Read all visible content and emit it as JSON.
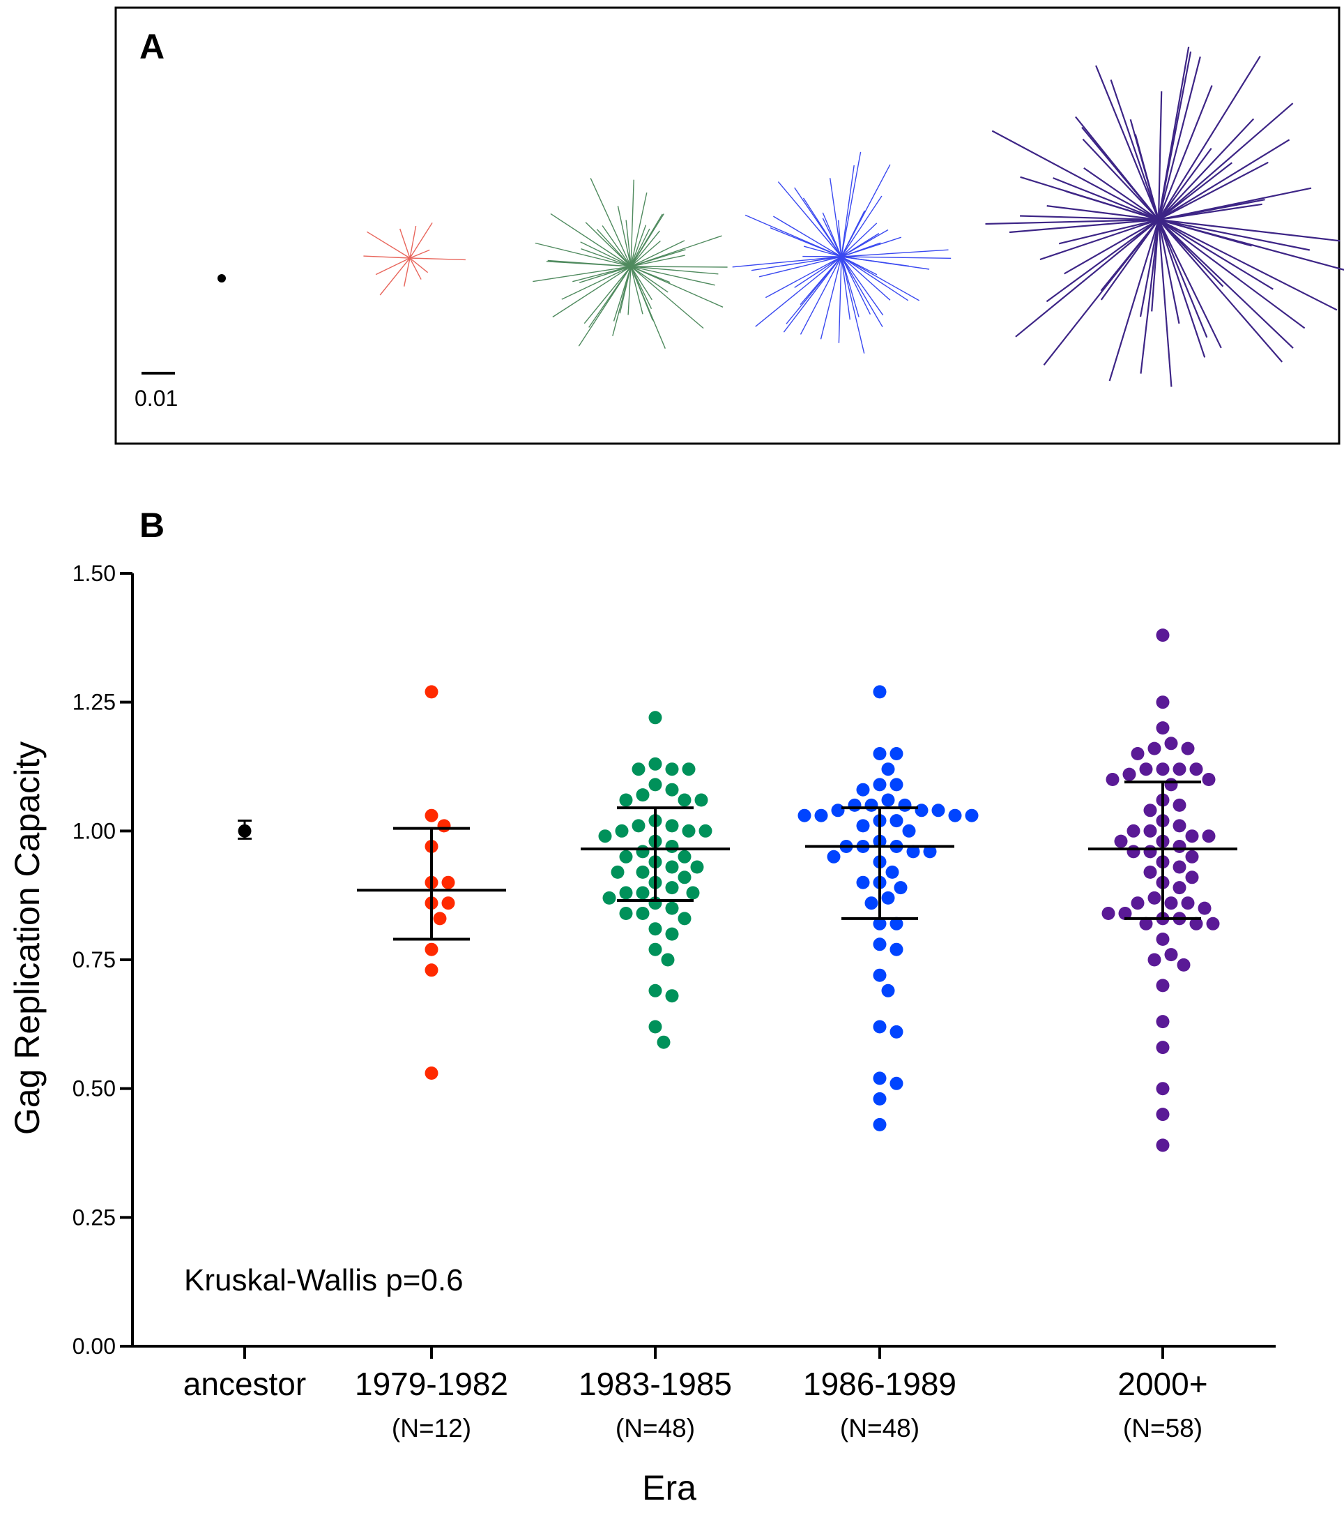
{
  "panel_a": {
    "letter": "A",
    "scale_label": "0.01",
    "tree_colors": [
      "#000000",
      "#e8665c",
      "#4f8a5e",
      "#3a49f0",
      "#3d2586"
    ]
  },
  "panel_b": {
    "letter": "B"
  },
  "chart_data": [
    {
      "type": "tree",
      "panel": "A",
      "description_labels": [
        "0.01"
      ],
      "trees": [
        {
          "era": "ancestor",
          "color": "#000000",
          "branches": 1
        },
        {
          "era": "1979-1982",
          "color": "#e8665c",
          "branches": 12
        },
        {
          "era": "1983-1985",
          "color": "#4f8a5e",
          "branches": 48
        },
        {
          "era": "1986-1989",
          "color": "#3a49f0",
          "branches": 48
        },
        {
          "era": "2000+",
          "color": "#3d2586",
          "branches": 58
        }
      ]
    },
    {
      "type": "scatter",
      "panel": "B",
      "xlabel": "Era",
      "ylabel": "Gag Replication Capacity",
      "ylim": [
        0,
        1.5
      ],
      "yticks": [
        "0.00",
        "0.25",
        "0.50",
        "0.75",
        "1.00",
        "1.25",
        "1.50"
      ],
      "annotation": "Kruskal-Wallis p=0.6",
      "categories": [
        {
          "label": "ancestor",
          "n_label": "",
          "color": "#000000",
          "values": [
            1.0
          ],
          "mean": 1.0,
          "err_low": 0.985,
          "err_high": 1.02,
          "style": "point"
        },
        {
          "label": "1979-1982",
          "n_label": "(N=12)",
          "color": "#ff2a00",
          "values": [
            1.27,
            1.03,
            1.01,
            0.97,
            0.9,
            0.9,
            0.86,
            0.86,
            0.83,
            0.77,
            0.73,
            0.53
          ],
          "mean": 0.885,
          "err_low": 0.79,
          "err_high": 1.005,
          "style": "swarm"
        },
        {
          "label": "1983-1985",
          "n_label": "(N=48)",
          "color": "#00915a",
          "values": [
            1.22,
            1.13,
            1.12,
            1.12,
            1.12,
            1.09,
            1.08,
            1.07,
            1.06,
            1.06,
            1.06,
            1.02,
            1.01,
            1.01,
            1.0,
            1.0,
            1.0,
            0.99,
            0.98,
            0.97,
            0.96,
            0.95,
            0.95,
            0.94,
            0.93,
            0.93,
            0.92,
            0.91,
            0.9,
            0.89,
            0.88,
            0.88,
            0.88,
            0.87,
            0.86,
            0.85,
            0.84,
            0.84,
            0.83,
            0.81,
            0.8,
            0.77,
            0.75,
            0.69,
            0.68,
            0.62,
            0.59,
            0.92
          ],
          "mean": 0.965,
          "err_low": 0.865,
          "err_high": 1.045,
          "style": "swarm"
        },
        {
          "label": "1986-1989",
          "n_label": "(N=48)",
          "color": "#0044ff",
          "values": [
            1.27,
            1.15,
            1.15,
            1.12,
            1.09,
            1.09,
            1.08,
            1.05,
            1.05,
            1.05,
            1.04,
            1.04,
            1.04,
            1.03,
            1.03,
            1.03,
            1.03,
            1.02,
            1.02,
            1.01,
            1.0,
            0.98,
            0.97,
            0.97,
            0.97,
            0.96,
            0.96,
            0.95,
            0.94,
            0.92,
            0.9,
            0.9,
            0.89,
            0.87,
            0.86,
            0.82,
            0.82,
            0.78,
            0.77,
            0.72,
            0.69,
            0.62,
            0.61,
            0.52,
            0.51,
            0.48,
            0.43,
            1.06
          ],
          "mean": 0.97,
          "err_low": 0.83,
          "err_high": 1.045,
          "style": "swarm"
        },
        {
          "label": "2000+",
          "n_label": "(N=58)",
          "color": "#5a1a96",
          "values": [
            1.38,
            1.25,
            1.2,
            1.17,
            1.16,
            1.16,
            1.15,
            1.12,
            1.12,
            1.12,
            1.12,
            1.11,
            1.1,
            1.1,
            1.09,
            1.06,
            1.05,
            1.04,
            1.02,
            1.01,
            1.0,
            1.0,
            0.99,
            0.99,
            0.98,
            0.98,
            0.97,
            0.96,
            0.96,
            0.95,
            0.94,
            0.93,
            0.92,
            0.91,
            0.9,
            0.89,
            0.87,
            0.86,
            0.86,
            0.86,
            0.85,
            0.84,
            0.84,
            0.83,
            0.83,
            0.82,
            0.82,
            0.82,
            0.79,
            0.76,
            0.75,
            0.74,
            0.7,
            0.63,
            0.58,
            0.5,
            0.45,
            0.39
          ],
          "mean": 0.965,
          "err_low": 0.83,
          "err_high": 1.095,
          "style": "swarm"
        }
      ]
    }
  ]
}
